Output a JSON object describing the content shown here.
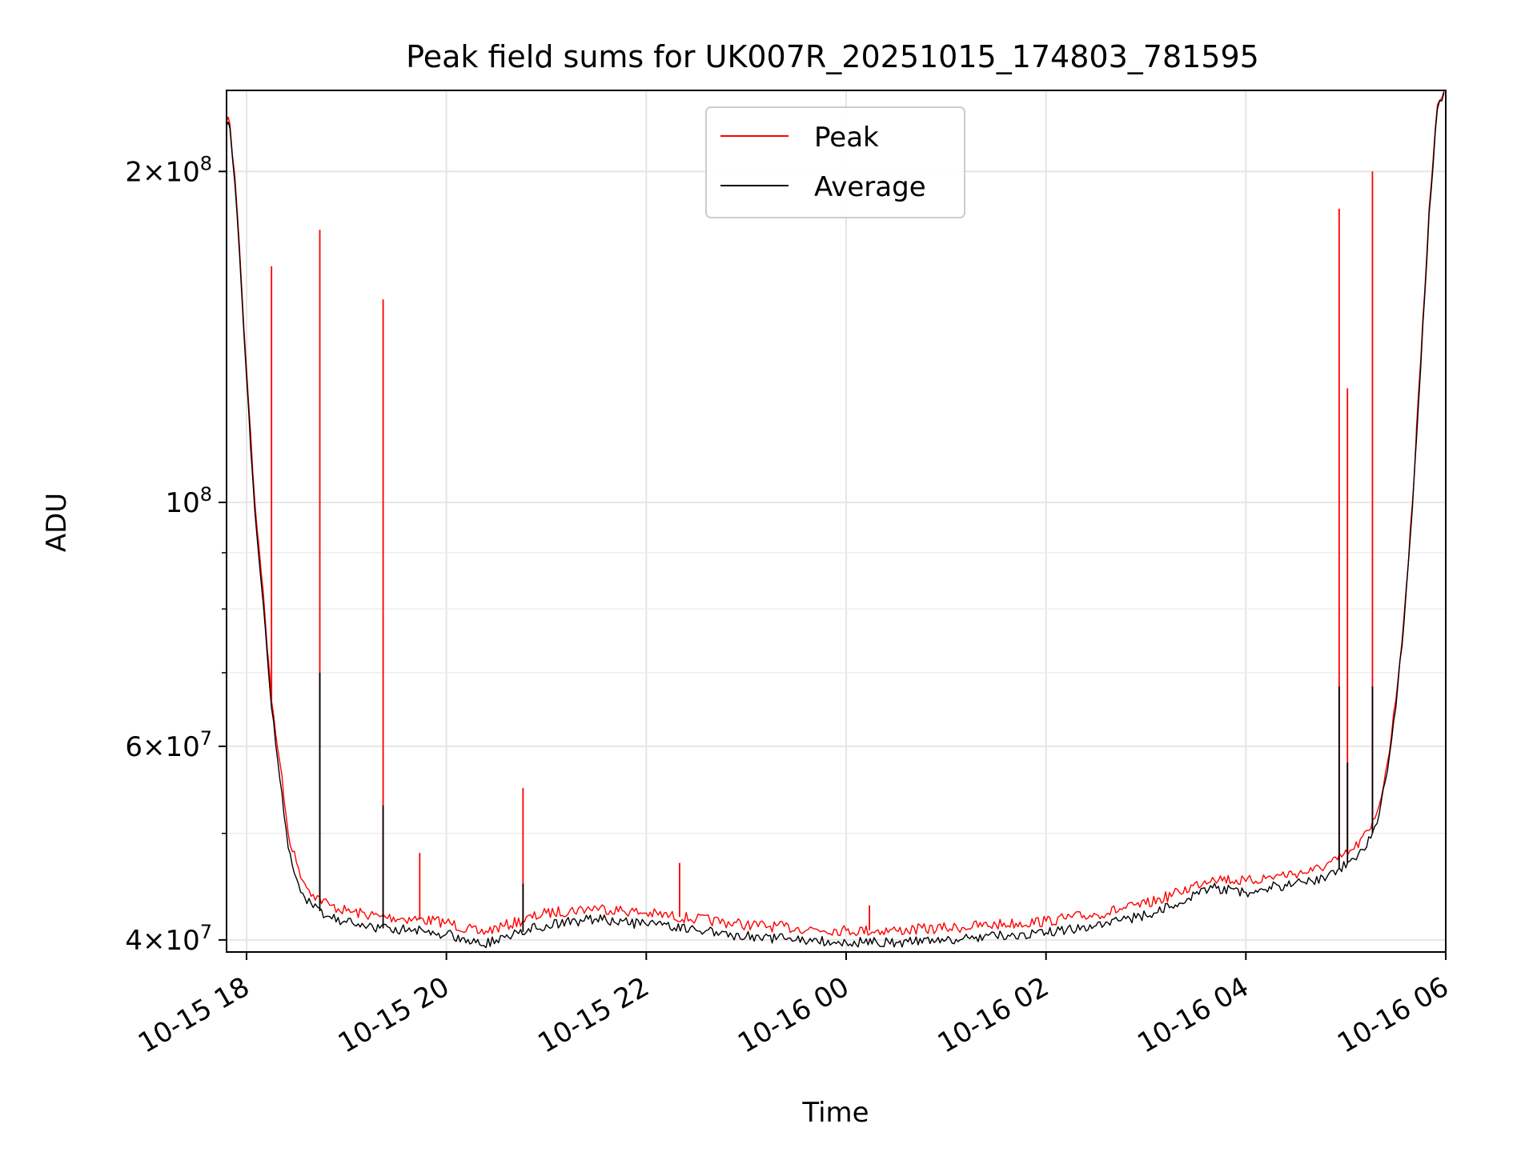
{
  "chart_data": {
    "type": "line",
    "title": "Peak field sums for UK007R_20251015_174803_781595",
    "xlabel": "Time",
    "ylabel": "ADU",
    "yscale": "log",
    "grid": true,
    "legend_position": "top-center",
    "xlim": [
      "2025-10-15 17:48",
      "2025-10-16 06:00"
    ],
    "ylim": [
      39000000,
      237000000
    ],
    "x_ticks": [
      {
        "value": "2025-10-15 18:00",
        "label": "10-15 18"
      },
      {
        "value": "2025-10-15 20:00",
        "label": "10-15 20"
      },
      {
        "value": "2025-10-15 22:00",
        "label": "10-15 22"
      },
      {
        "value": "2025-10-16 00:00",
        "label": "10-16 00"
      },
      {
        "value": "2025-10-16 02:00",
        "label": "10-16 02"
      },
      {
        "value": "2025-10-16 04:00",
        "label": "10-16 04"
      },
      {
        "value": "2025-10-16 06:00",
        "label": "10-16 06"
      }
    ],
    "y_ticks": [
      {
        "value": 40000000,
        "mantissa": "4",
        "exponent": "7"
      },
      {
        "value": 60000000,
        "mantissa": "6",
        "exponent": "7"
      },
      {
        "value": 100000000,
        "mantissa": "",
        "exponent": "8"
      },
      {
        "value": 200000000,
        "mantissa": "2",
        "exponent": "8"
      }
    ],
    "y_minor_ticks": [
      50000000,
      70000000,
      80000000,
      90000000
    ],
    "series": [
      {
        "name": "Peak",
        "color": "#ff0000",
        "points": [
          [
            "2025-10-15 17:48",
            222000000
          ],
          [
            "2025-10-15 17:50",
            221000000
          ],
          [
            "2025-10-15 17:53",
            198000000
          ],
          [
            "2025-10-15 17:57",
            158000000
          ],
          [
            "2025-10-15 18:00",
            132000000
          ],
          [
            "2025-10-15 18:05",
            100000000
          ],
          [
            "2025-10-15 18:10",
            83000000
          ],
          [
            "2025-10-15 18:15",
            66000000
          ],
          [
            "2025-10-15 18:20",
            58000000
          ],
          [
            "2025-10-15 18:25",
            50000000
          ],
          [
            "2025-10-15 18:30",
            47000000
          ],
          [
            "2025-10-15 18:35",
            45000000
          ],
          [
            "2025-10-15 18:40",
            44000000
          ],
          [
            "2025-10-15 18:50",
            43000000
          ],
          [
            "2025-10-15 19:00",
            42500000
          ],
          [
            "2025-10-15 19:20",
            42000000
          ],
          [
            "2025-10-15 19:40",
            41800000
          ],
          [
            "2025-10-15 20:00",
            41500000
          ],
          [
            "2025-10-15 20:20",
            40600000
          ],
          [
            "2025-10-15 20:35",
            41200000
          ],
          [
            "2025-10-15 21:00",
            42300000
          ],
          [
            "2025-10-15 21:30",
            42800000
          ],
          [
            "2025-10-15 22:00",
            42300000
          ],
          [
            "2025-10-15 22:30",
            41800000
          ],
          [
            "2025-10-15 23:00",
            41300000
          ],
          [
            "2025-10-15 23:30",
            41000000
          ],
          [
            "2025-10-16 00:00",
            40800000
          ],
          [
            "2025-10-16 00:30",
            40800000
          ],
          [
            "2025-10-16 01:00",
            41000000
          ],
          [
            "2025-10-16 01:30",
            41300000
          ],
          [
            "2025-10-16 02:00",
            41600000
          ],
          [
            "2025-10-16 02:30",
            42200000
          ],
          [
            "2025-10-16 03:00",
            43100000
          ],
          [
            "2025-10-16 03:20",
            44200000
          ],
          [
            "2025-10-16 03:40",
            45600000
          ],
          [
            "2025-10-16 04:00",
            45200000
          ],
          [
            "2025-10-16 04:20",
            45800000
          ],
          [
            "2025-10-16 04:40",
            46200000
          ],
          [
            "2025-10-16 04:55",
            47300000
          ],
          [
            "2025-10-16 05:05",
            48400000
          ],
          [
            "2025-10-16 05:15",
            50500000
          ],
          [
            "2025-10-16 05:20",
            53000000
          ],
          [
            "2025-10-16 05:25",
            58000000
          ],
          [
            "2025-10-16 05:30",
            66000000
          ],
          [
            "2025-10-16 05:35",
            79000000
          ],
          [
            "2025-10-16 05:40",
            100000000
          ],
          [
            "2025-10-16 05:45",
            135000000
          ],
          [
            "2025-10-16 05:50",
            185000000
          ],
          [
            "2025-10-16 05:55",
            230000000
          ],
          [
            "2025-10-16 05:59",
            237000000
          ]
        ],
        "spikes": [
          [
            "2025-10-15 18:15",
            164000000
          ],
          [
            "2025-10-15 18:44",
            177000000
          ],
          [
            "2025-10-15 19:22",
            153000000
          ],
          [
            "2025-10-15 19:44",
            48000000
          ],
          [
            "2025-10-15 20:46",
            55000000
          ],
          [
            "2025-10-15 22:20",
            47000000
          ],
          [
            "2025-10-16 00:14",
            43000000
          ],
          [
            "2025-10-16 04:56",
            185000000
          ],
          [
            "2025-10-16 05:01",
            127000000
          ],
          [
            "2025-10-16 05:16",
            200000000
          ]
        ]
      },
      {
        "name": "Average",
        "color": "#000000",
        "points": [
          [
            "2025-10-15 17:48",
            220000000
          ],
          [
            "2025-10-15 17:50",
            219000000
          ],
          [
            "2025-10-15 17:53",
            195000000
          ],
          [
            "2025-10-15 17:57",
            156000000
          ],
          [
            "2025-10-15 18:00",
            130000000
          ],
          [
            "2025-10-15 18:05",
            98000000
          ],
          [
            "2025-10-15 18:10",
            81000000
          ],
          [
            "2025-10-15 18:15",
            65000000
          ],
          [
            "2025-10-15 18:20",
            56000000
          ],
          [
            "2025-10-15 18:25",
            48500000
          ],
          [
            "2025-10-15 18:30",
            45500000
          ],
          [
            "2025-10-15 18:35",
            43700000
          ],
          [
            "2025-10-15 18:40",
            42800000
          ],
          [
            "2025-10-15 18:50",
            42000000
          ],
          [
            "2025-10-15 19:00",
            41500000
          ],
          [
            "2025-10-15 19:20",
            41000000
          ],
          [
            "2025-10-15 19:40",
            40800000
          ],
          [
            "2025-10-15 20:00",
            40500000
          ],
          [
            "2025-10-15 20:20",
            39600000
          ],
          [
            "2025-10-15 20:35",
            40200000
          ],
          [
            "2025-10-15 21:00",
            41300000
          ],
          [
            "2025-10-15 21:30",
            41800000
          ],
          [
            "2025-10-15 22:00",
            41300000
          ],
          [
            "2025-10-15 22:30",
            40800000
          ],
          [
            "2025-10-15 23:00",
            40300000
          ],
          [
            "2025-10-15 23:30",
            40000000
          ],
          [
            "2025-10-16 00:00",
            39800000
          ],
          [
            "2025-10-16 00:30",
            39800000
          ],
          [
            "2025-10-16 01:00",
            40000000
          ],
          [
            "2025-10-16 01:30",
            40300000
          ],
          [
            "2025-10-16 02:00",
            40600000
          ],
          [
            "2025-10-16 02:30",
            41200000
          ],
          [
            "2025-10-16 03:00",
            42100000
          ],
          [
            "2025-10-16 03:20",
            43200000
          ],
          [
            "2025-10-16 03:40",
            44600000
          ],
          [
            "2025-10-16 04:00",
            44200000
          ],
          [
            "2025-10-16 04:20",
            44800000
          ],
          [
            "2025-10-16 04:40",
            45200000
          ],
          [
            "2025-10-16 04:55",
            46300000
          ],
          [
            "2025-10-16 05:05",
            47400000
          ],
          [
            "2025-10-16 05:15",
            49500000
          ],
          [
            "2025-10-16 05:20",
            52000000
          ],
          [
            "2025-10-16 05:25",
            57000000
          ],
          [
            "2025-10-16 05:30",
            65000000
          ],
          [
            "2025-10-16 05:35",
            78000000
          ],
          [
            "2025-10-16 05:40",
            99000000
          ],
          [
            "2025-10-16 05:45",
            133000000
          ],
          [
            "2025-10-16 05:50",
            183000000
          ],
          [
            "2025-10-16 05:55",
            228000000
          ],
          [
            "2025-10-16 05:59",
            236000000
          ]
        ],
        "spikes": [
          [
            "2025-10-15 18:44",
            70000000
          ],
          [
            "2025-10-15 19:22",
            53000000
          ],
          [
            "2025-10-15 20:46",
            45000000
          ],
          [
            "2025-10-16 04:56",
            68000000
          ],
          [
            "2025-10-16 05:01",
            58000000
          ],
          [
            "2025-10-16 05:16",
            68000000
          ]
        ]
      }
    ]
  }
}
